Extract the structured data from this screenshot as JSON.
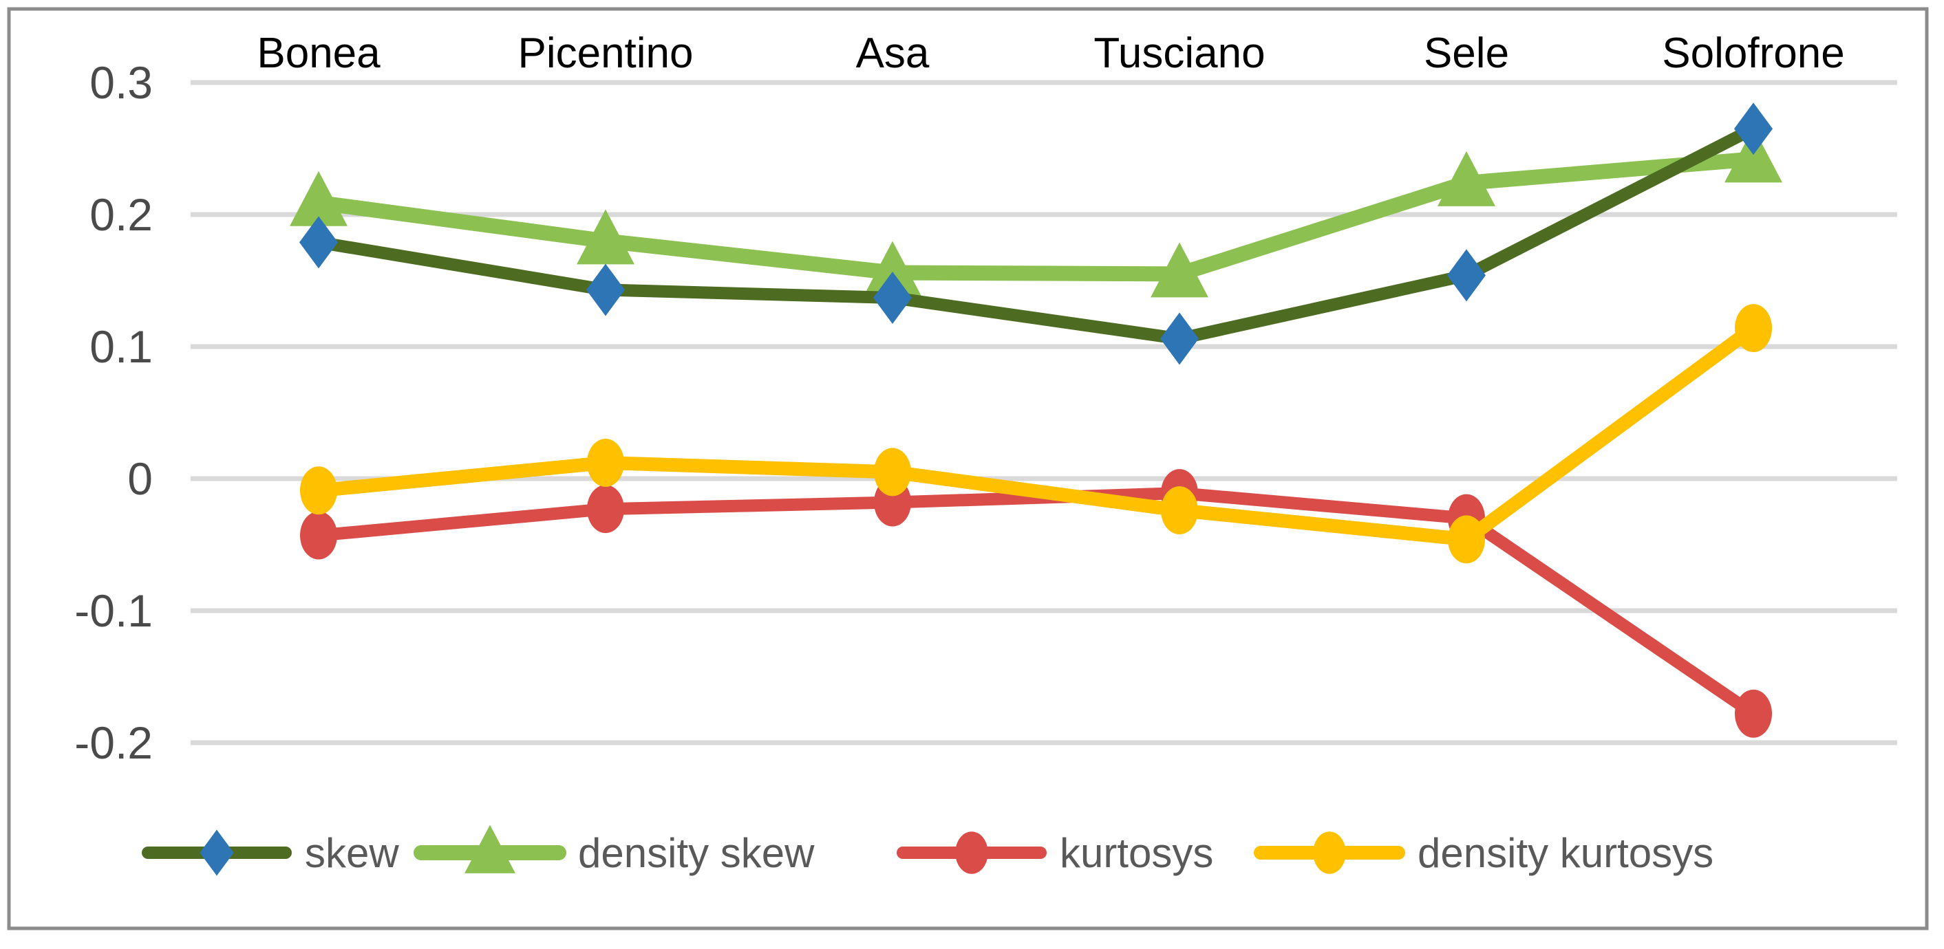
{
  "chart_data": {
    "type": "line",
    "title": "",
    "categories": [
      "Bonea",
      "Picentino",
      "Asa",
      "Tusciano",
      "Sele",
      "Solofrone"
    ],
    "series": [
      {
        "name": "skew",
        "marker": "diamond",
        "line_color": "#4D6B21",
        "marker_color": "#2E75B6",
        "values": [
          0.179,
          0.143,
          0.137,
          0.106,
          0.154,
          0.265
        ]
      },
      {
        "name": "density skew",
        "marker": "triangle",
        "line_color": "#8CC152",
        "marker_color": "#8CC152",
        "values": [
          0.209,
          0.18,
          0.156,
          0.155,
          0.224,
          0.242
        ]
      },
      {
        "name": "kurtosys",
        "marker": "circle",
        "line_color": "#D94C48",
        "marker_color": "#D94C48",
        "values": [
          -0.043,
          -0.023,
          -0.018,
          -0.011,
          -0.03,
          -0.178
        ]
      },
      {
        "name": "density kurtosys",
        "marker": "circle",
        "line_color": "#FFC000",
        "marker_color": "#FFC000",
        "values": [
          -0.009,
          0.012,
          0.005,
          -0.024,
          -0.046,
          0.114
        ]
      }
    ],
    "y_ticks": [
      "0.3",
      "0.2",
      "0.1",
      "0",
      "-0.1",
      "-0.2"
    ],
    "y_tick_values": [
      0.3,
      0.2,
      0.1,
      0,
      -0.1,
      -0.2
    ],
    "ylim": [
      -0.2,
      0.3
    ],
    "grid": true,
    "legend_position": "bottom",
    "category_labels_position": "top",
    "style": {
      "background": "#FFFFFF",
      "frame_border_color": "#8C8C8C",
      "gridline_color": "#D9D9D9",
      "tick_label_color": "#4A4A4A",
      "category_label_color": "#000000",
      "legend_text_color": "#595959"
    }
  }
}
